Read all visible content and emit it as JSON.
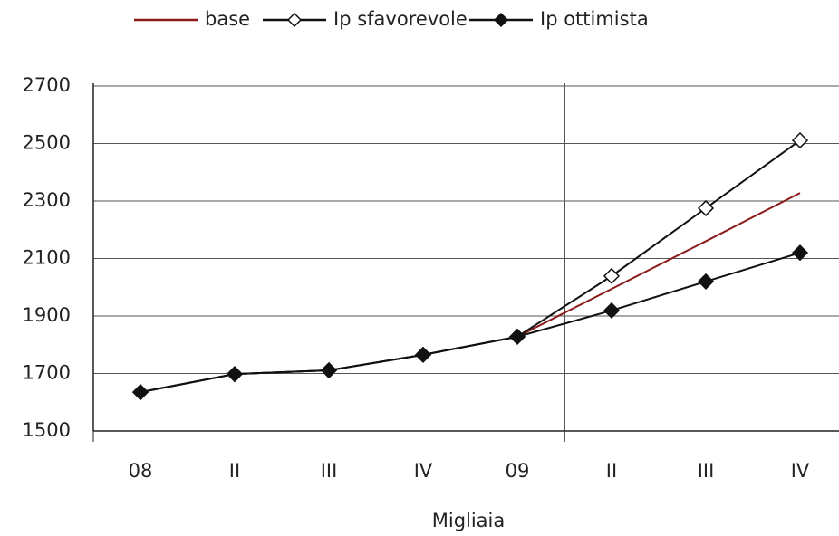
{
  "chart_data": {
    "type": "line",
    "x_label": "Migliaia",
    "categories": [
      "08",
      "II",
      "III",
      "IV",
      "09",
      "II",
      "III",
      "IV"
    ],
    "series": [
      {
        "name": "base",
        "color": "#8b1a1a",
        "marker": "none",
        "values": [
          1635,
          1698,
          1711,
          1765,
          1828,
          1994,
          2160,
          2328
        ]
      },
      {
        "name": "Ip sfavorevole",
        "color": "#111111",
        "marker": "open",
        "values": [
          1635,
          1698,
          1711,
          1765,
          1828,
          2039,
          2275,
          2511
        ]
      },
      {
        "name": "Ip ottimista",
        "color": "#111111",
        "marker": "filled",
        "values": [
          1635,
          1698,
          1711,
          1765,
          1828,
          1919,
          2020,
          2120
        ]
      }
    ],
    "ylim": [
      1500,
      2700
    ],
    "yticks": [
      1500,
      1700,
      1900,
      2100,
      2300,
      2500,
      2700
    ],
    "grid": true
  }
}
